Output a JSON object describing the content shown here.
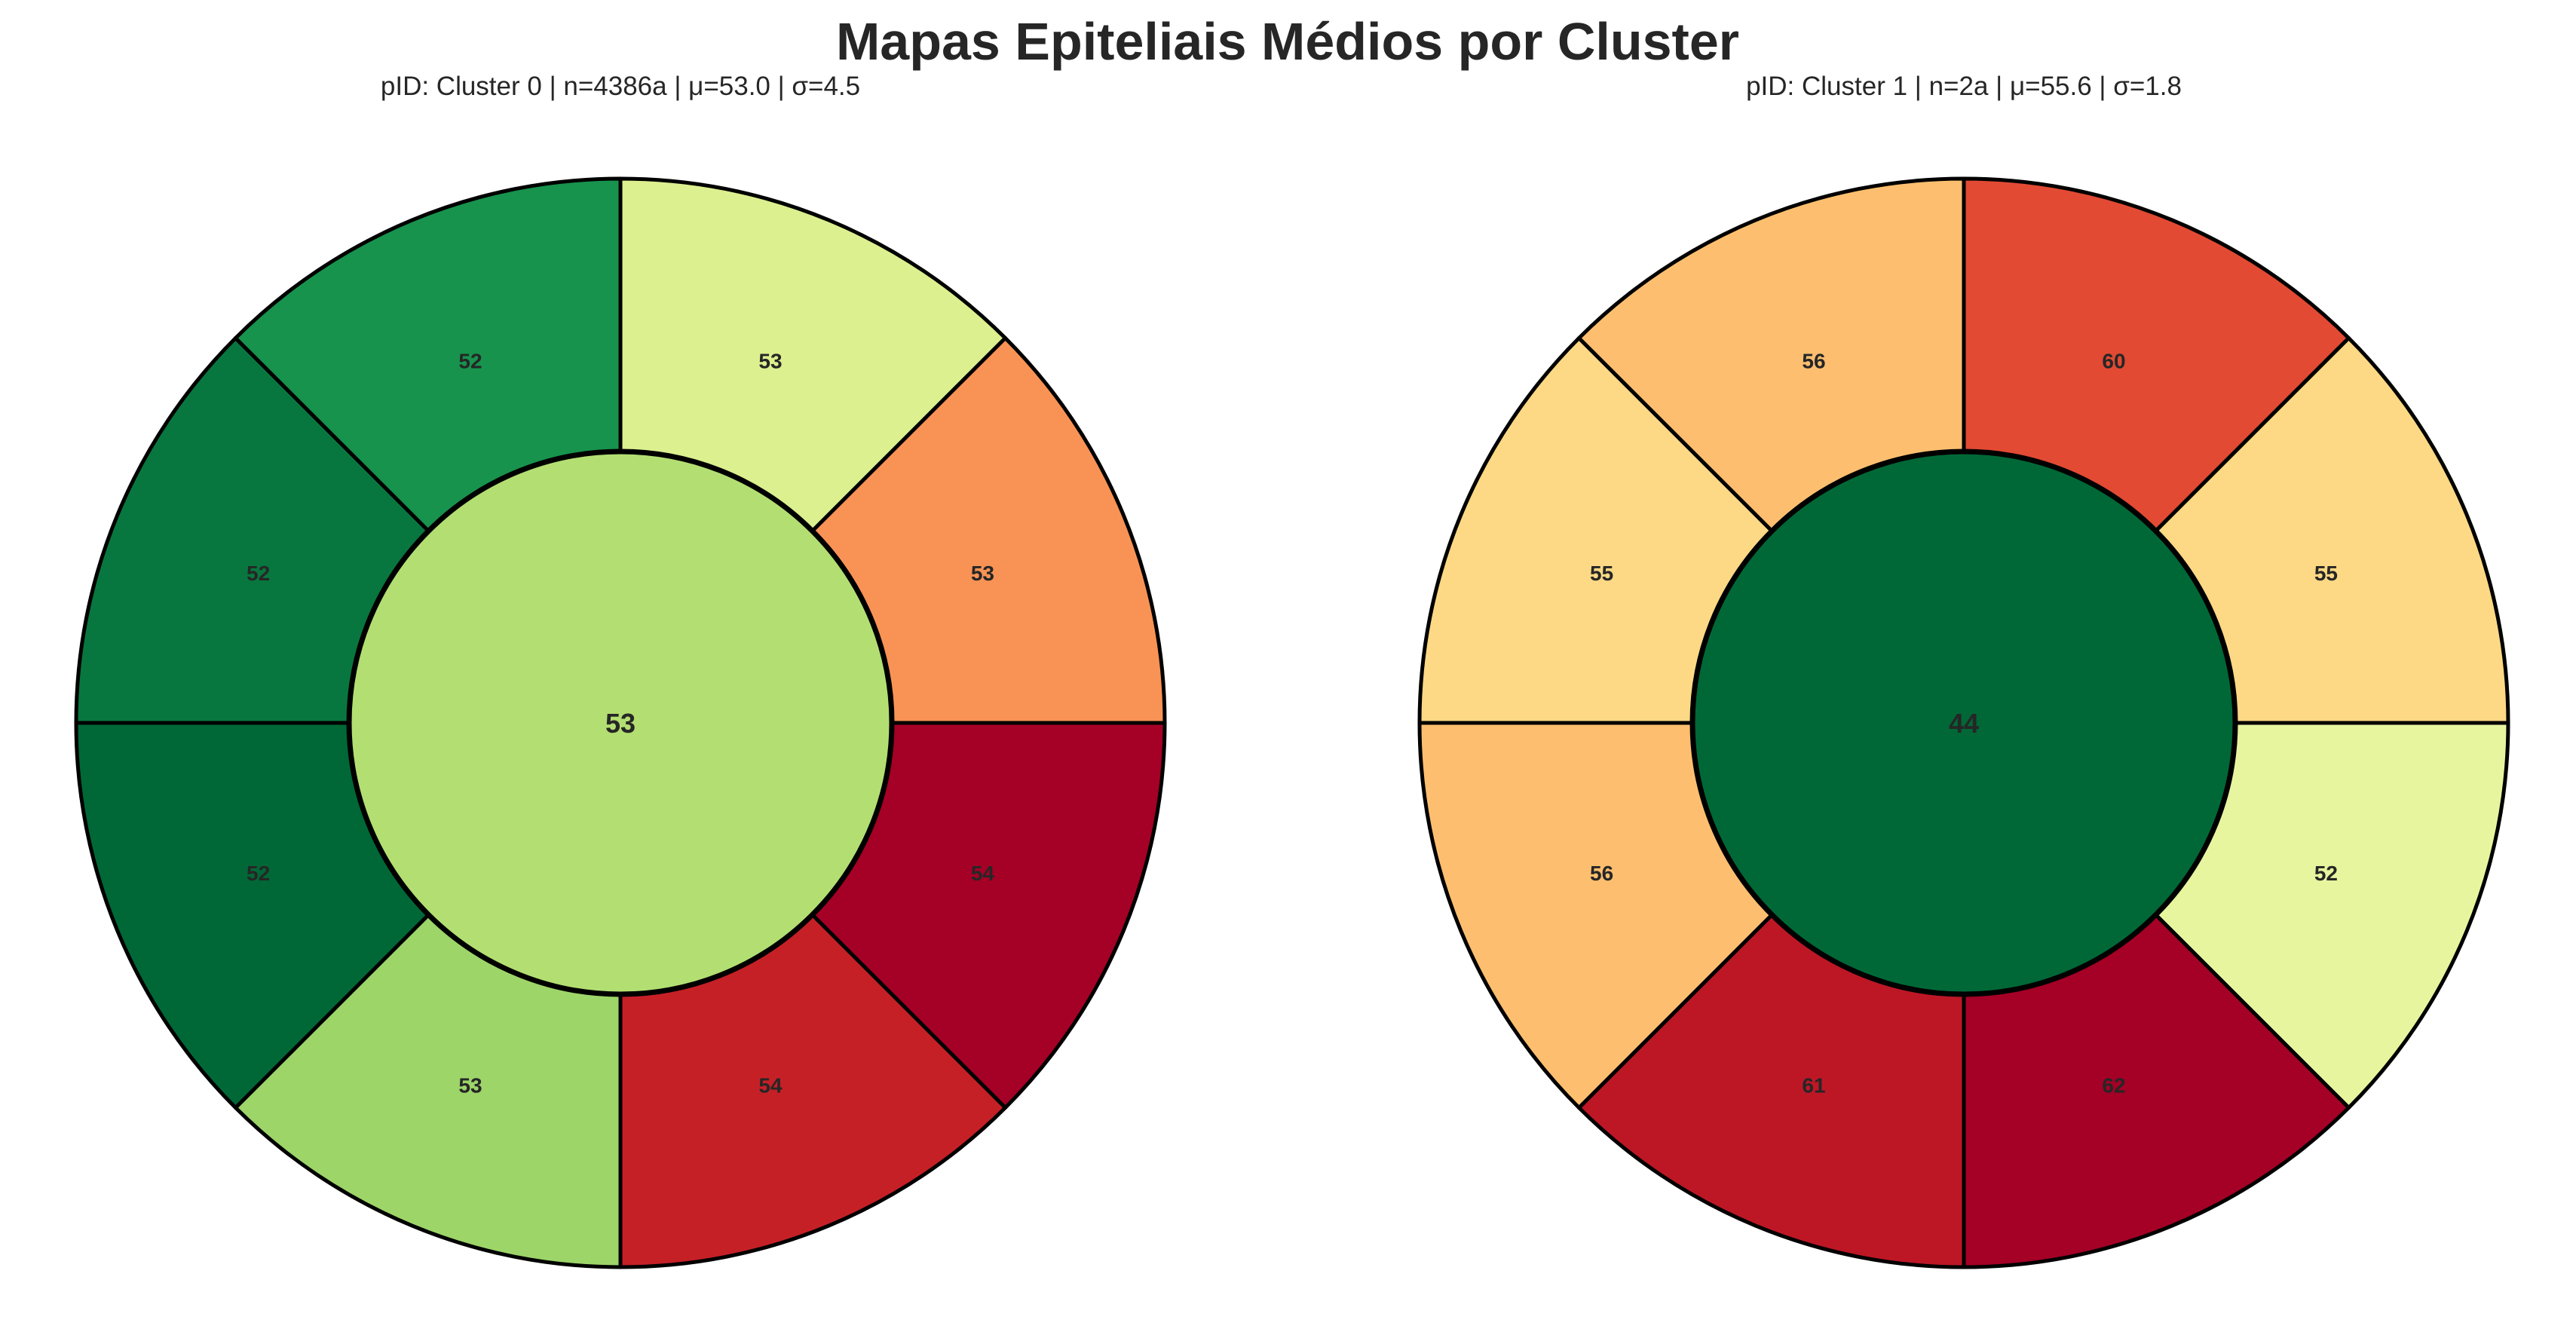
{
  "figure": {
    "title": "Mapas Epiteliais Médios por Cluster"
  },
  "chart_data": [
    {
      "type": "pie",
      "title": "pID: Cluster 0 | n=4386a | μ=53.0 | σ=4.5",
      "center": {
        "value": 53,
        "label": "53",
        "color": "#b3df72"
      },
      "sectors": [
        {
          "value": 53,
          "label": "53",
          "color": "#dcf08f"
        },
        {
          "value": 53,
          "label": "53",
          "color": "#f99355"
        },
        {
          "value": 54,
          "label": "54",
          "color": "#a50026"
        },
        {
          "value": 54,
          "label": "54",
          "color": "#c62027"
        },
        {
          "value": 53,
          "label": "53",
          "color": "#9dd569"
        },
        {
          "value": 52,
          "label": "52",
          "color": "#006837"
        },
        {
          "value": 52,
          "label": "52",
          "color": "#08773f"
        },
        {
          "value": 52,
          "label": "52",
          "color": "#17934d"
        }
      ]
    },
    {
      "type": "pie",
      "title": "pID: Cluster 1 | n=2a | μ=55.6 | σ=1.8",
      "center": {
        "value": 44,
        "label": "44",
        "color": "#006837"
      },
      "sectors": [
        {
          "value": 60,
          "label": "60",
          "color": "#e24a33"
        },
        {
          "value": 55,
          "label": "55",
          "color": "#fdd985"
        },
        {
          "value": 52,
          "label": "52",
          "color": "#e8f59f"
        },
        {
          "value": 62,
          "label": "62",
          "color": "#a50026"
        },
        {
          "value": 61,
          "label": "61",
          "color": "#bd1726"
        },
        {
          "value": 56,
          "label": "56",
          "color": "#fdbf6f"
        },
        {
          "value": 55,
          "label": "55",
          "color": "#fdd985"
        },
        {
          "value": 56,
          "label": "56",
          "color": "#fdbf6f"
        }
      ]
    }
  ]
}
